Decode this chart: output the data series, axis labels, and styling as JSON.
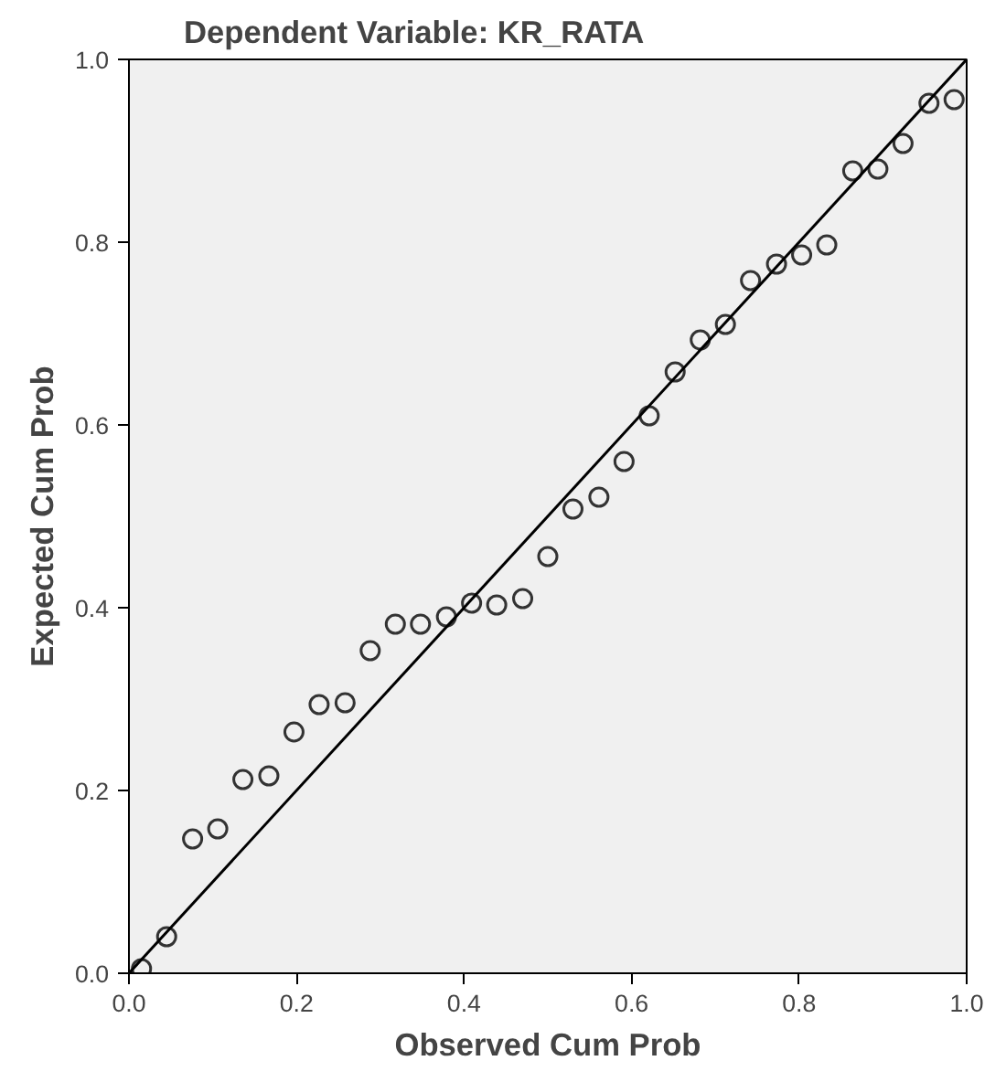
{
  "chart_data": {
    "type": "scatter",
    "title": "Dependent Variable: KR_RATA",
    "xlabel": "Observed Cum Prob",
    "ylabel": "Expected Cum Prob",
    "xlim": [
      0,
      1
    ],
    "ylim": [
      0,
      1
    ],
    "xticks": [
      {
        "value": 0,
        "label": "0.0"
      },
      {
        "value": 0.2,
        "label": "0.2"
      },
      {
        "value": 0.4,
        "label": "0.4"
      },
      {
        "value": 0.6,
        "label": "0.6"
      },
      {
        "value": 0.8,
        "label": "0.8"
      },
      {
        "value": 1,
        "label": "1.0"
      }
    ],
    "yticks": [
      {
        "value": 0,
        "label": "0.0"
      },
      {
        "value": 0.2,
        "label": "0.2"
      },
      {
        "value": 0.4,
        "label": "0.4"
      },
      {
        "value": 0.6,
        "label": "0.6"
      },
      {
        "value": 0.8,
        "label": "0.8"
      },
      {
        "value": 1,
        "label": "1.0"
      }
    ],
    "grid": false,
    "series": [
      {
        "marker": "circle",
        "color": "#333333",
        "x": [
          0.015,
          0.045,
          0.076,
          0.106,
          0.136,
          0.167,
          0.197,
          0.227,
          0.258,
          0.288,
          0.318,
          0.348,
          0.379,
          0.409,
          0.439,
          0.47,
          0.5,
          0.53,
          0.561,
          0.591,
          0.621,
          0.652,
          0.682,
          0.712,
          0.742,
          0.773,
          0.803,
          0.833,
          0.864,
          0.894,
          0.924,
          0.955,
          0.985
        ],
        "values": [
          0.005,
          0.04,
          0.147,
          0.158,
          0.212,
          0.216,
          0.264,
          0.294,
          0.296,
          0.353,
          0.382,
          0.382,
          0.39,
          0.405,
          0.403,
          0.41,
          0.456,
          0.508,
          0.521,
          0.56,
          0.61,
          0.658,
          0.693,
          0.71,
          0.758,
          0.776,
          0.786,
          0.797,
          0.878,
          0.88,
          0.908,
          0.952,
          0.956
        ]
      },
      {
        "type": "line",
        "color": "#000000",
        "x": [
          0,
          1
        ],
        "values": [
          0,
          1
        ]
      }
    ]
  }
}
